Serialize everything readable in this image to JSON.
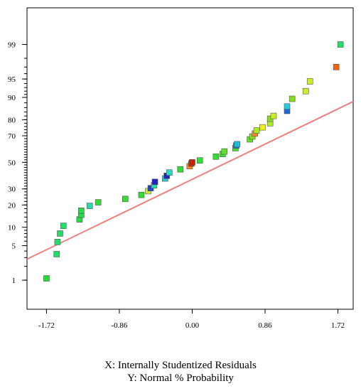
{
  "chart_data": {
    "type": "scatter",
    "title": "",
    "xlabel": "X: Internally Studentized Residuals",
    "ylabel": "Y: Normal % Probability",
    "x_scale": "linear",
    "y_scale": "normal-probability",
    "xlim": [
      -1.95,
      1.9
    ],
    "ylim_z": [
      -2.9,
      3.05
    ],
    "x_ticks": [
      -1.72,
      -0.86,
      0.0,
      0.86,
      1.72
    ],
    "x_tick_labels": [
      "-1.72",
      "-0.86",
      "0.00",
      "0.86",
      "1.72"
    ],
    "y_ticks": [
      1,
      5,
      10,
      20,
      30,
      50,
      70,
      80,
      90,
      95,
      99
    ],
    "y_tick_labels": [
      "1",
      "5",
      "10",
      "20",
      "30",
      "50",
      "70",
      "80",
      "90",
      "95",
      "99"
    ],
    "grid": false,
    "legend": "none",
    "fit_line": {
      "from": [
        -1.95,
        2.8
      ],
      "to": [
        1.9,
        88.5
      ],
      "color": "#f08080"
    },
    "points": [
      {
        "x": -1.72,
        "y": 1.1,
        "color": "#22dd33"
      },
      {
        "x": -1.6,
        "y": 3.5,
        "color": "#22dd66"
      },
      {
        "x": -1.59,
        "y": 5.8,
        "color": "#22dd66"
      },
      {
        "x": -1.56,
        "y": 8.0,
        "color": "#22dd66"
      },
      {
        "x": -1.52,
        "y": 10.5,
        "color": "#22dd66"
      },
      {
        "x": -1.33,
        "y": 13.0,
        "color": "#22dd44"
      },
      {
        "x": -1.31,
        "y": 15.0,
        "color": "#22dd44"
      },
      {
        "x": -1.31,
        "y": 17.0,
        "color": "#22dd44"
      },
      {
        "x": -1.21,
        "y": 19.5,
        "color": "#22ddaa"
      },
      {
        "x": -1.11,
        "y": 21.5,
        "color": "#33dd33"
      },
      {
        "x": -0.79,
        "y": 23.5,
        "color": "#33dd33"
      },
      {
        "x": -0.6,
        "y": 26.0,
        "color": "#33dd33"
      },
      {
        "x": -0.52,
        "y": 28.5,
        "color": "#ccee22"
      },
      {
        "x": -0.49,
        "y": 30.5,
        "color": "#2244cc"
      },
      {
        "x": -0.45,
        "y": 32.5,
        "color": "#22ddaa"
      },
      {
        "x": -0.44,
        "y": 35.0,
        "color": "#2222cc"
      },
      {
        "x": -0.32,
        "y": 37.5,
        "color": "#22ccdd"
      },
      {
        "x": -0.3,
        "y": 39.5,
        "color": "#2222cc"
      },
      {
        "x": -0.27,
        "y": 42.0,
        "color": "#22ddcc"
      },
      {
        "x": -0.14,
        "y": 44.5,
        "color": "#33dd33"
      },
      {
        "x": -0.03,
        "y": 47.0,
        "color": "#ff8822"
      },
      {
        "x": -0.01,
        "y": 49.0,
        "color": "#dd2200"
      },
      {
        "x": 0.0,
        "y": 50.0,
        "color": "#cc2200"
      },
      {
        "x": 0.09,
        "y": 51.5,
        "color": "#33dd33"
      },
      {
        "x": 0.28,
        "y": 54.5,
        "color": "#33dd33"
      },
      {
        "x": 0.36,
        "y": 56.5,
        "color": "#44dd33"
      },
      {
        "x": 0.38,
        "y": 58.5,
        "color": "#66dd33"
      },
      {
        "x": 0.51,
        "y": 61.0,
        "color": "#44dd33"
      },
      {
        "x": 0.52,
        "y": 63.0,
        "color": "#2266dd"
      },
      {
        "x": 0.53,
        "y": 64.0,
        "color": "#22bbdd"
      },
      {
        "x": 0.68,
        "y": 67.5,
        "color": "#66dd33"
      },
      {
        "x": 0.71,
        "y": 69.5,
        "color": "#88dd22"
      },
      {
        "x": 0.74,
        "y": 71.5,
        "color": "#ff8822"
      },
      {
        "x": 0.76,
        "y": 73.5,
        "color": "#aaee22"
      },
      {
        "x": 0.83,
        "y": 75.5,
        "color": "#eeee22"
      },
      {
        "x": 0.92,
        "y": 78.0,
        "color": "#aaee22"
      },
      {
        "x": 0.92,
        "y": 80.5,
        "color": "#88dd22"
      },
      {
        "x": 0.96,
        "y": 82.0,
        "color": "#ccee22"
      },
      {
        "x": 1.12,
        "y": 84.5,
        "color": "#2266dd"
      },
      {
        "x": 1.12,
        "y": 86.5,
        "color": "#22ccdd"
      },
      {
        "x": 1.18,
        "y": 89.5,
        "color": "#88dd22"
      },
      {
        "x": 1.34,
        "y": 92.0,
        "color": "#ccee22"
      },
      {
        "x": 1.39,
        "y": 94.5,
        "color": "#ccee22"
      },
      {
        "x": 1.7,
        "y": 97.0,
        "color": "#ee6611"
      },
      {
        "x": 1.75,
        "y": 99.0,
        "color": "#22dd66"
      }
    ]
  }
}
